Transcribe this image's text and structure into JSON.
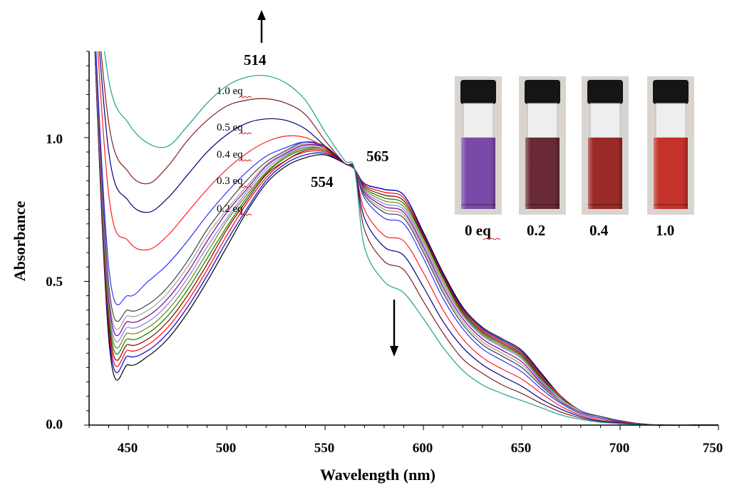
{
  "chart_data": {
    "type": "line",
    "xlabel": "Wavelength (nm)",
    "ylabel": "Absorbance",
    "xlim": [
      430,
      750
    ],
    "ylim": [
      0.0,
      1.3
    ],
    "x_ticks": [
      "450",
      "500",
      "550",
      "600",
      "650",
      "700",
      "750"
    ],
    "y_ticks": [
      "0.0",
      "0.5",
      "1.0"
    ],
    "x": [
      430,
      440,
      450,
      460,
      470,
      480,
      490,
      500,
      510,
      520,
      530,
      540,
      550,
      560,
      565,
      570,
      580,
      590,
      600,
      610,
      620,
      630,
      640,
      650,
      660,
      670,
      680,
      690,
      700,
      710,
      720,
      740,
      750
    ],
    "series": [
      {
        "color": "#000000",
        "values": [
          1.8,
          0.3,
          0.21,
          0.24,
          0.3,
          0.39,
          0.5,
          0.62,
          0.74,
          0.84,
          0.9,
          0.93,
          0.94,
          0.91,
          0.89,
          0.84,
          0.82,
          0.8,
          0.67,
          0.53,
          0.41,
          0.34,
          0.3,
          0.26,
          0.18,
          0.1,
          0.05,
          0.03,
          0.015,
          0.005,
          0.0,
          0.0,
          0.0
        ]
      },
      {
        "color": "#0000dd",
        "values": [
          1.8,
          0.32,
          0.24,
          0.26,
          0.32,
          0.41,
          0.52,
          0.64,
          0.75,
          0.85,
          0.91,
          0.94,
          0.945,
          0.91,
          0.89,
          0.84,
          0.82,
          0.8,
          0.665,
          0.525,
          0.405,
          0.335,
          0.295,
          0.255,
          0.175,
          0.1,
          0.05,
          0.03,
          0.015,
          0.005,
          0.0,
          0.0,
          0.0
        ]
      },
      {
        "color": "#ff0000",
        "values": [
          1.8,
          0.34,
          0.26,
          0.28,
          0.34,
          0.43,
          0.54,
          0.66,
          0.77,
          0.86,
          0.92,
          0.95,
          0.95,
          0.91,
          0.89,
          0.835,
          0.81,
          0.79,
          0.66,
          0.52,
          0.4,
          0.33,
          0.29,
          0.25,
          0.17,
          0.1,
          0.05,
          0.03,
          0.015,
          0.005,
          0.0,
          0.0,
          0.0
        ]
      },
      {
        "color": "#800000",
        "values": [
          1.8,
          0.36,
          0.28,
          0.3,
          0.36,
          0.45,
          0.56,
          0.68,
          0.78,
          0.87,
          0.92,
          0.955,
          0.955,
          0.91,
          0.89,
          0.83,
          0.8,
          0.78,
          0.655,
          0.515,
          0.395,
          0.325,
          0.285,
          0.245,
          0.165,
          0.095,
          0.05,
          0.03,
          0.015,
          0.005,
          0.0,
          0.0,
          0.0
        ]
      },
      {
        "color": "#008000",
        "values": [
          1.8,
          0.38,
          0.3,
          0.32,
          0.38,
          0.47,
          0.58,
          0.69,
          0.79,
          0.875,
          0.93,
          0.96,
          0.96,
          0.91,
          0.89,
          0.825,
          0.79,
          0.77,
          0.65,
          0.51,
          0.39,
          0.32,
          0.28,
          0.24,
          0.16,
          0.095,
          0.05,
          0.03,
          0.015,
          0.005,
          0.0,
          0.0,
          0.0
        ]
      },
      {
        "color": "#808000",
        "values": [
          1.8,
          0.4,
          0.32,
          0.34,
          0.4,
          0.49,
          0.6,
          0.71,
          0.8,
          0.88,
          0.935,
          0.965,
          0.96,
          0.91,
          0.89,
          0.82,
          0.78,
          0.76,
          0.64,
          0.5,
          0.385,
          0.315,
          0.275,
          0.235,
          0.155,
          0.09,
          0.05,
          0.03,
          0.015,
          0.005,
          0.0,
          0.0,
          0.0
        ]
      },
      {
        "color": "#8080ff",
        "values": [
          1.8,
          0.42,
          0.34,
          0.36,
          0.42,
          0.51,
          0.62,
          0.72,
          0.81,
          0.89,
          0.94,
          0.97,
          0.965,
          0.91,
          0.89,
          0.815,
          0.77,
          0.75,
          0.63,
          0.49,
          0.38,
          0.31,
          0.27,
          0.23,
          0.15,
          0.09,
          0.05,
          0.03,
          0.015,
          0.005,
          0.0,
          0.0,
          0.0
        ]
      },
      {
        "color": "#800080",
        "values": [
          1.8,
          0.44,
          0.36,
          0.38,
          0.44,
          0.53,
          0.64,
          0.74,
          0.82,
          0.9,
          0.945,
          0.975,
          0.965,
          0.91,
          0.89,
          0.81,
          0.76,
          0.74,
          0.62,
          0.48,
          0.37,
          0.3,
          0.26,
          0.22,
          0.145,
          0.085,
          0.045,
          0.03,
          0.015,
          0.005,
          0.0,
          0.0,
          0.0
        ]
      },
      {
        "color": "#a0a0a0",
        "values": [
          1.8,
          0.46,
          0.38,
          0.4,
          0.46,
          0.55,
          0.66,
          0.75,
          0.83,
          0.905,
          0.95,
          0.98,
          0.97,
          0.91,
          0.89,
          0.805,
          0.75,
          0.73,
          0.61,
          0.47,
          0.36,
          0.29,
          0.25,
          0.21,
          0.14,
          0.085,
          0.045,
          0.03,
          0.015,
          0.005,
          0.0,
          0.0,
          0.0
        ]
      },
      {
        "color": "#404040",
        "values": [
          1.8,
          0.49,
          0.4,
          0.42,
          0.48,
          0.57,
          0.68,
          0.77,
          0.85,
          0.915,
          0.955,
          0.985,
          0.97,
          0.91,
          0.89,
          0.8,
          0.74,
          0.72,
          0.6,
          0.46,
          0.35,
          0.28,
          0.24,
          0.2,
          0.135,
          0.08,
          0.045,
          0.03,
          0.015,
          0.005,
          0.0,
          0.0,
          0.0
        ]
      },
      {
        "color": "#3030ff",
        "values": [
          1.8,
          0.55,
          0.45,
          0.5,
          0.56,
          0.64,
          0.73,
          0.81,
          0.88,
          0.935,
          0.965,
          0.985,
          0.965,
          0.91,
          0.89,
          0.79,
          0.72,
          0.7,
          0.58,
          0.44,
          0.335,
          0.265,
          0.225,
          0.185,
          0.125,
          0.075,
          0.04,
          0.025,
          0.012,
          0.005,
          0.0,
          0.0,
          0.0
        ]
      },
      {
        "color": "#ff2020",
        "values": [
          1.8,
          0.8,
          0.64,
          0.61,
          0.66,
          0.74,
          0.82,
          0.89,
          0.945,
          0.985,
          1.005,
          1.0,
          0.965,
          0.91,
          0.89,
          0.75,
          0.66,
          0.64,
          0.53,
          0.4,
          0.3,
          0.235,
          0.195,
          0.16,
          0.11,
          0.065,
          0.035,
          0.02,
          0.01,
          0.005,
          0.0,
          0.0,
          0.0
        ]
      },
      {
        "color": "#000080",
        "values": [
          1.8,
          0.95,
          0.78,
          0.74,
          0.79,
          0.87,
          0.95,
          1.01,
          1.05,
          1.065,
          1.06,
          1.03,
          0.97,
          0.91,
          0.89,
          0.72,
          0.62,
          0.59,
          0.48,
          0.36,
          0.27,
          0.21,
          0.17,
          0.135,
          0.09,
          0.055,
          0.03,
          0.015,
          0.008,
          0.003,
          0.0,
          0.0,
          0.0
        ]
      },
      {
        "color": "#802020",
        "values": [
          1.8,
          1.05,
          0.88,
          0.84,
          0.9,
          0.99,
          1.06,
          1.11,
          1.13,
          1.135,
          1.12,
          1.08,
          0.99,
          0.91,
          0.89,
          0.68,
          0.57,
          0.54,
          0.43,
          0.32,
          0.23,
          0.18,
          0.14,
          0.11,
          0.075,
          0.045,
          0.025,
          0.012,
          0.006,
          0.002,
          0.0,
          0.0,
          0.0
        ]
      },
      {
        "color": "#20a090",
        "values": [
          1.8,
          1.2,
          1.05,
          0.98,
          0.97,
          1.04,
          1.12,
          1.18,
          1.21,
          1.215,
          1.19,
          1.13,
          1.02,
          0.92,
          0.89,
          0.62,
          0.5,
          0.46,
          0.37,
          0.27,
          0.19,
          0.14,
          0.11,
          0.085,
          0.06,
          0.035,
          0.02,
          0.01,
          0.005,
          0.002,
          0.0,
          0.0,
          0.0
        ]
      }
    ],
    "annotations": {
      "peaks": [
        "514",
        "565",
        "554"
      ],
      "eq_labels": [
        "1.0 eq",
        "0.5 eq",
        "0.4 eq",
        "0.3 eq",
        "0.2 eq"
      ]
    },
    "grid": false,
    "legend": "none"
  },
  "vials": {
    "labels": [
      "0 eq",
      "0.2",
      "0.4",
      "1.0"
    ],
    "colors": [
      "#7a4aa8",
      "#6a2a35",
      "#9a2a28",
      "#c4322a"
    ]
  }
}
